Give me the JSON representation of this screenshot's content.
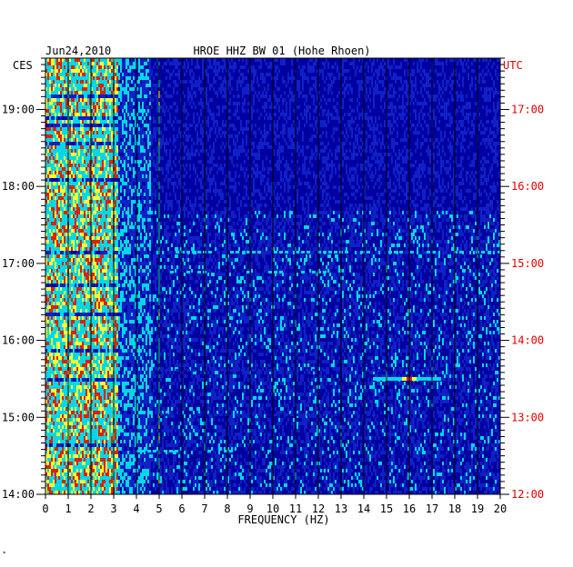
{
  "chart_data": {
    "type": "heatmap",
    "date": "Jun24,2010",
    "title": "HROE HHZ BW 01 (Hohe Rhoen)",
    "xlabel": "FREQUENCY (HZ)",
    "x_ticks": [
      "0",
      "1",
      "2",
      "3",
      "4",
      "5",
      "6",
      "7",
      "8",
      "9",
      "10",
      "11",
      "12",
      "13",
      "14",
      "15",
      "16",
      "17",
      "18",
      "19",
      "20"
    ],
    "xlim": [
      0,
      20
    ],
    "left_axis_label": "CES",
    "left_ticks": [
      "19:00",
      "18:00",
      "17:00",
      "16:00",
      "15:00",
      "14:00"
    ],
    "right_axis_label": "UTC",
    "right_ticks": [
      "17:00",
      "16:00",
      "15:00",
      "14:00",
      "13:00",
      "12:00"
    ],
    "time_range_local": [
      "14:00",
      "19:40"
    ],
    "grid": true,
    "colors": {
      "background": "#0000a0",
      "low": "#1020c8",
      "mid": "#00d8e8",
      "high": "#ffff30",
      "peak": "#e02000",
      "grid": "#000000",
      "right_axis": "#e00000"
    },
    "hot_bands_hz": [
      [
        0,
        3.2
      ],
      [
        4.9,
        5.0
      ]
    ],
    "notable_events": [
      {
        "time": "15:30",
        "freq_hz": [
          14.4,
          17.4
        ],
        "peak_hz": 16
      }
    ]
  },
  "footer_mark": "*"
}
